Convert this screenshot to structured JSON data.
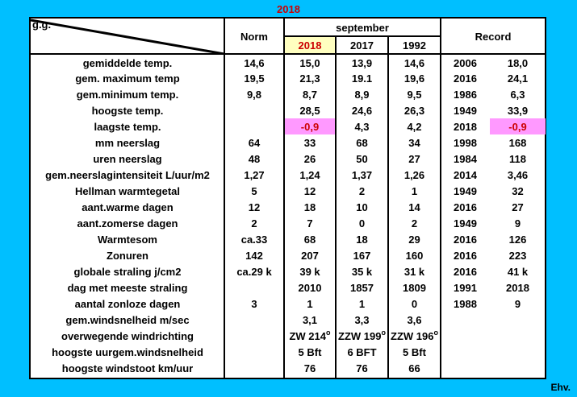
{
  "title": "2018",
  "footer": "Ehv.",
  "header": {
    "corner": "g.g.",
    "norm": "Norm",
    "month": "september",
    "years": [
      "2018",
      "2017",
      "1992"
    ],
    "record": "Record"
  },
  "rows": [
    {
      "label": "gemiddelde temp.",
      "norm": "14,6",
      "y2018": "15,0",
      "y2017": "13,9",
      "y1992": "14,6",
      "rec_year": "2006",
      "rec_val": "18,0"
    },
    {
      "label": "gem. maximum temp",
      "norm": "19,5",
      "y2018": "21,3",
      "y2017": "19.1",
      "y1992": "19,6",
      "rec_year": "2016",
      "rec_val": "24,1"
    },
    {
      "label": "gem.minimum temp.",
      "norm": "9,8",
      "y2018": "8,7",
      "y2017": "8,9",
      "y1992": "9,5",
      "rec_year": "1986",
      "rec_val": "6,3"
    },
    {
      "label": "hoogste temp.",
      "norm": "",
      "y2018": "28,5",
      "y2017": "24,6",
      "y1992": "26,3",
      "rec_year": "1949",
      "rec_val": "33,9"
    },
    {
      "label": "laagste temp.",
      "norm": "",
      "y2018": "-0,9",
      "y2017": "4,3",
      "y1992": "4,2",
      "rec_year": "2018",
      "rec_val": "-0,9"
    },
    {
      "label": "mm neerslag",
      "norm": "64",
      "y2018": "33",
      "y2017": "68",
      "y1992": "34",
      "rec_year": "1998",
      "rec_val": "168"
    },
    {
      "label": "uren neerslag",
      "norm": "48",
      "y2018": "26",
      "y2017": "50",
      "y1992": "27",
      "rec_year": "1984",
      "rec_val": "118"
    },
    {
      "label": "gem.neerslagintensiteit L/uur/m2",
      "norm": "1,27",
      "y2018": "1,24",
      "y2017": "1,37",
      "y1992": "1,26",
      "rec_year": "2014",
      "rec_val": "3,46"
    },
    {
      "label": "Hellman warmtegetal",
      "norm": "5",
      "y2018": "12",
      "y2017": "2",
      "y1992": "1",
      "rec_year": "1949",
      "rec_val": "32"
    },
    {
      "label": "aant.warme dagen",
      "norm": "12",
      "y2018": "18",
      "y2017": "10",
      "y1992": "14",
      "rec_year": "2016",
      "rec_val": "27"
    },
    {
      "label": "aant.zomerse dagen",
      "norm": "2",
      "y2018": "7",
      "y2017": "0",
      "y1992": "2",
      "rec_year": "1949",
      "rec_val": "9"
    },
    {
      "label": "Warmtesom",
      "norm": "ca.33",
      "y2018": "68",
      "y2017": "18",
      "y1992": "29",
      "rec_year": "2016",
      "rec_val": "126"
    },
    {
      "label": "Zonuren",
      "norm": "142",
      "y2018": "207",
      "y2017": "167",
      "y1992": "160",
      "rec_year": "2016",
      "rec_val": "223"
    },
    {
      "label": "globale straling j/cm2",
      "norm": "ca.29 k",
      "y2018": "39 k",
      "y2017": "35 k",
      "y1992": "31 k",
      "rec_year": "2016",
      "rec_val": "41 k"
    },
    {
      "label": "dag met meeste straling",
      "norm": "",
      "y2018": "2010",
      "y2017": "1857",
      "y1992": "1809",
      "rec_year": "1991",
      "rec_val": "2018"
    },
    {
      "label": "aantal zonloze dagen",
      "norm": "3",
      "y2018": "1",
      "y2017": "1",
      "y1992": "0",
      "rec_year": "1988",
      "rec_val": "9"
    },
    {
      "label": "gem.windsnelheid m/sec",
      "norm": "",
      "y2018": "3,1",
      "y2017": "3,3",
      "y1992": "3,6",
      "rec_year": "",
      "rec_val": ""
    },
    {
      "label": "overwegende windrichting",
      "norm": "",
      "y2018": "ZW 214",
      "y2017": "ZZW 199",
      "y1992": "ZZW 196",
      "rec_year": "",
      "rec_val": ""
    },
    {
      "label": "hoogste uurgem.windsnelheid",
      "norm": "",
      "y2018": "5 Bft",
      "y2017": "6 BFT",
      "y1992": "5 Bft",
      "rec_year": "",
      "rec_val": ""
    },
    {
      "label": "hoogste windstoot km/uur",
      "norm": "",
      "y2018": "76",
      "y2017": "76",
      "y1992": "66",
      "rec_year": "",
      "rec_val": ""
    }
  ],
  "degree_mark": "o"
}
